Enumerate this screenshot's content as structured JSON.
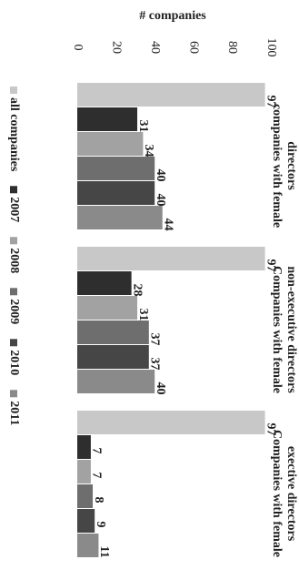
{
  "chart_data": {
    "type": "bar",
    "orientation": "horizontal",
    "y_axis_title": "# companies",
    "categories": [
      "companies with female directors",
      "Companies with female non-executive directors",
      "Companies with female exective directors"
    ],
    "series": [
      {
        "name": "all companies",
        "color": "#c8c8c8",
        "values": [
          97,
          97,
          97
        ]
      },
      {
        "name": "2007",
        "color": "#2e2e2e",
        "values": [
          31,
          28,
          7
        ]
      },
      {
        "name": "2008",
        "color": "#a2a2a2",
        "values": [
          34,
          31,
          7
        ]
      },
      {
        "name": "2009",
        "color": "#6e6e6e",
        "values": [
          40,
          37,
          8
        ]
      },
      {
        "name": "2010",
        "color": "#464646",
        "values": [
          40,
          37,
          9
        ]
      },
      {
        "name": "2011",
        "color": "#8a8a8a",
        "values": [
          44,
          40,
          11
        ]
      }
    ],
    "ylim": [
      0,
      100
    ],
    "yticks": [
      0,
      20,
      40,
      60,
      80,
      100
    ]
  }
}
